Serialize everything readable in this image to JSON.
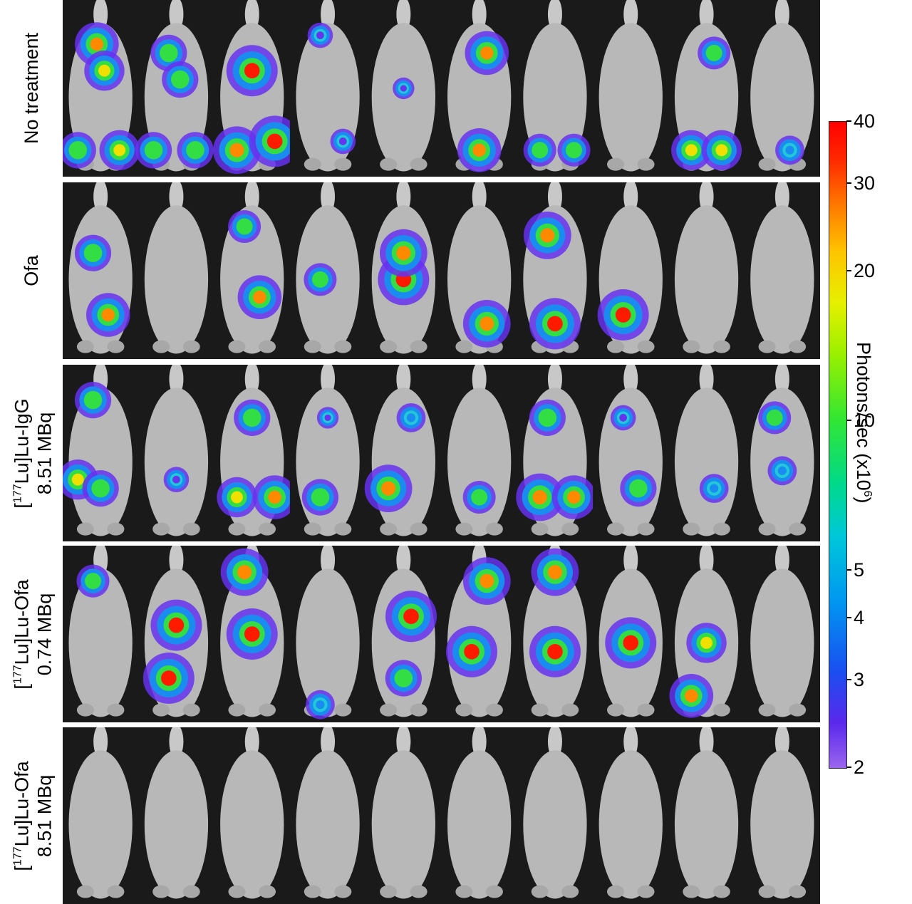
{
  "rows": [
    {
      "label_line1": "No treatment",
      "label_line2": ""
    },
    {
      "label_line1": "Ofa",
      "label_line2": ""
    },
    {
      "label_pre": "[",
      "label_sup": "177",
      "label_post": "Lu]Lu-IgG",
      "label_line2": "8.51 MBq"
    },
    {
      "label_pre": "[",
      "label_sup": "177",
      "label_post": "Lu]Lu-Ofa",
      "label_line2": "0.74 MBq"
    },
    {
      "label_pre": "[",
      "label_sup": "177",
      "label_post": "Lu]Lu-Ofa",
      "label_line2": "8.51 MBq"
    }
  ],
  "colorbar": {
    "title_main": "Photons/sec  (x10",
    "title_sup": "6",
    "title_end": ")",
    "ticks": [
      "40",
      "30",
      "20",
      "10",
      "5",
      "4",
      "3",
      "2"
    ],
    "scale": "log",
    "range": [
      2,
      40
    ]
  },
  "palette": {
    "background": "#1a1a1a",
    "mouse": "#b8b8b8",
    "signal_high": "#ff0000",
    "signal_mid": "#22dd33",
    "signal_low": "#6633ee"
  }
}
